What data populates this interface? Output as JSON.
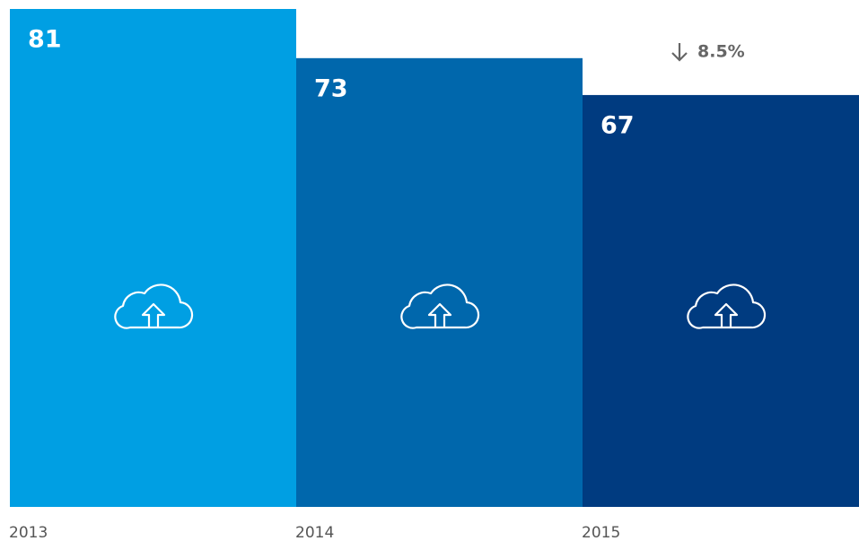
{
  "chart_data": {
    "type": "bar",
    "categories": [
      "2013",
      "2014",
      "2015"
    ],
    "values": [
      81,
      73,
      67
    ],
    "colors": [
      "#009fe3",
      "#0067ac",
      "#003b80"
    ],
    "ylim": [
      0,
      81
    ],
    "annotation": "8.5%"
  }
}
